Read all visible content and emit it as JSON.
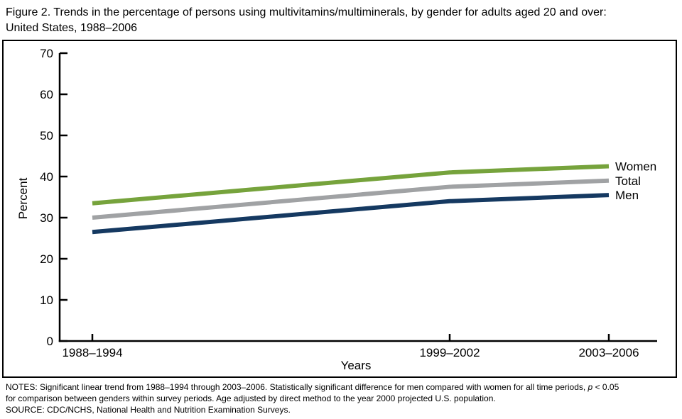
{
  "title": {
    "line1": "Figure 2. Trends in the percentage of persons using multivitamins/multiminerals, by gender for adults aged 20 and over:",
    "line2": "United States, 1988–2006"
  },
  "chart_data": {
    "type": "line",
    "title": "Trends in the percentage of persons using multivitamins/multiminerals, by gender for adults aged 20 and over: United States, 1988–2006",
    "categories": [
      "1988–1994",
      "1999–2002",
      "2003–2006"
    ],
    "series": [
      {
        "name": "Women",
        "values": [
          33.5,
          41,
          42.5
        ],
        "color": "#76A33C"
      },
      {
        "name": "Total",
        "values": [
          30,
          37.5,
          39
        ],
        "color": "#A0A2A4"
      },
      {
        "name": "Men",
        "values": [
          26.5,
          34,
          35.5
        ],
        "color": "#153961"
      }
    ],
    "xlabel": "Years",
    "ylabel": "Percent",
    "ylim": [
      0,
      70
    ],
    "yticks": [
      0,
      10,
      20,
      30,
      40,
      50,
      60,
      70
    ],
    "grid": false,
    "legend_position": "right-end-labels",
    "axis_color": "#000000"
  },
  "notes": {
    "line1_before": "NOTES: Significant linear trend from 1988–1994 through 2003–2006. Statistically significant difference for men compared with women for all time periods, ",
    "line1_p": "p",
    "line1_after": " < 0.05",
    "line2": "for comparison between genders within survey periods. Age adjusted by direct method to the year 2000 projected U.S. population.",
    "source": "SOURCE: CDC/NCHS, National Health and Nutrition Examination Surveys."
  }
}
